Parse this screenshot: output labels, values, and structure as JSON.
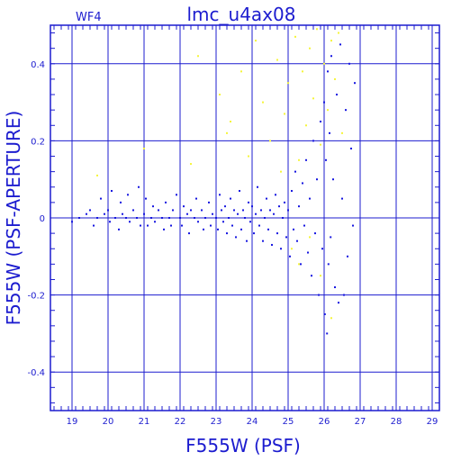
{
  "chart_data": {
    "type": "scatter",
    "title": "lmc_u4ax08",
    "corner_label": "WF4",
    "xlabel": "F555W (PSF)",
    "ylabel": "F555W (PSF-APERTURE)",
    "xlim": [
      18.4,
      29.2
    ],
    "ylim": [
      -0.5,
      0.5
    ],
    "xticks": [
      19,
      20,
      21,
      22,
      23,
      24,
      25,
      26,
      27,
      28,
      29
    ],
    "yticks": [
      -0.4,
      -0.2,
      0,
      0.2,
      0.4
    ],
    "ytick_labels": [
      "-0.4",
      "-0.2",
      "0",
      "0.2",
      "0.4"
    ],
    "grid": true,
    "colors": {
      "frame": "#1c1ccf",
      "grid": "#1c1ccf",
      "primary": "#1616e0",
      "secondary": "#f5f53a"
    },
    "series": [
      {
        "color": "#1616e0",
        "points": [
          [
            19.0,
            -0.01
          ],
          [
            19.2,
            0.0
          ],
          [
            19.4,
            0.01
          ],
          [
            19.5,
            0.02
          ],
          [
            19.6,
            -0.02
          ],
          [
            19.7,
            0.0
          ],
          [
            19.8,
            0.05
          ],
          [
            19.9,
            0.01
          ],
          [
            20.0,
            0.02
          ],
          [
            20.05,
            -0.01
          ],
          [
            20.1,
            0.07
          ],
          [
            20.2,
            0.0
          ],
          [
            20.3,
            -0.03
          ],
          [
            20.35,
            0.04
          ],
          [
            20.4,
            0.01
          ],
          [
            20.5,
            0.0
          ],
          [
            20.55,
            0.06
          ],
          [
            20.6,
            -0.01
          ],
          [
            20.7,
            0.02
          ],
          [
            20.8,
            0.0
          ],
          [
            20.85,
            0.08
          ],
          [
            20.9,
            -0.02
          ],
          [
            21.0,
            0.01
          ],
          [
            21.05,
            0.05
          ],
          [
            21.1,
            -0.02
          ],
          [
            21.2,
            0.0
          ],
          [
            21.25,
            0.03
          ],
          [
            21.3,
            -0.01
          ],
          [
            21.4,
            0.02
          ],
          [
            21.5,
            0.0
          ],
          [
            21.55,
            -0.03
          ],
          [
            21.6,
            0.04
          ],
          [
            21.7,
            0.0
          ],
          [
            21.75,
            -0.02
          ],
          [
            21.8,
            0.02
          ],
          [
            21.9,
            0.06
          ],
          [
            22.0,
            0.0
          ],
          [
            22.05,
            -0.02
          ],
          [
            22.1,
            0.03
          ],
          [
            22.2,
            0.01
          ],
          [
            22.25,
            -0.04
          ],
          [
            22.3,
            0.02
          ],
          [
            22.4,
            0.0
          ],
          [
            22.45,
            0.05
          ],
          [
            22.5,
            -0.01
          ],
          [
            22.6,
            0.02
          ],
          [
            22.65,
            -0.03
          ],
          [
            22.7,
            0.0
          ],
          [
            22.8,
            0.04
          ],
          [
            22.85,
            -0.02
          ],
          [
            22.9,
            0.01
          ],
          [
            23.0,
            0.0
          ],
          [
            23.05,
            -0.03
          ],
          [
            23.1,
            0.06
          ],
          [
            23.15,
            0.02
          ],
          [
            23.2,
            -0.01
          ],
          [
            23.25,
            0.03
          ],
          [
            23.3,
            -0.04
          ],
          [
            23.35,
            0.0
          ],
          [
            23.4,
            0.05
          ],
          [
            23.45,
            -0.02
          ],
          [
            23.5,
            0.02
          ],
          [
            23.55,
            -0.05
          ],
          [
            23.6,
            0.01
          ],
          [
            23.65,
            0.07
          ],
          [
            23.7,
            -0.03
          ],
          [
            23.75,
            0.02
          ],
          [
            23.8,
            0.0
          ],
          [
            23.85,
            -0.06
          ],
          [
            23.9,
            0.04
          ],
          [
            23.95,
            -0.01
          ],
          [
            24.0,
            0.03
          ],
          [
            24.05,
            -0.04
          ],
          [
            24.1,
            0.01
          ],
          [
            24.15,
            0.08
          ],
          [
            24.2,
            -0.02
          ],
          [
            24.25,
            0.02
          ],
          [
            24.3,
            -0.06
          ],
          [
            24.35,
            0.0
          ],
          [
            24.4,
            0.05
          ],
          [
            24.45,
            -0.03
          ],
          [
            24.5,
            0.02
          ],
          [
            24.55,
            -0.07
          ],
          [
            24.6,
            0.01
          ],
          [
            24.65,
            0.06
          ],
          [
            24.7,
            -0.04
          ],
          [
            24.75,
            0.03
          ],
          [
            24.8,
            -0.08
          ],
          [
            24.85,
            0.0
          ],
          [
            24.9,
            0.04
          ],
          [
            24.95,
            -0.05
          ],
          [
            25.0,
            0.02
          ],
          [
            25.05,
            -0.1
          ],
          [
            25.1,
            0.07
          ],
          [
            25.15,
            -0.03
          ],
          [
            25.2,
            0.12
          ],
          [
            25.25,
            -0.06
          ],
          [
            25.3,
            0.03
          ],
          [
            25.35,
            -0.12
          ],
          [
            25.4,
            0.09
          ],
          [
            25.45,
            -0.02
          ],
          [
            25.5,
            0.15
          ],
          [
            25.55,
            -0.09
          ],
          [
            25.6,
            0.05
          ],
          [
            25.65,
            -0.15
          ],
          [
            25.7,
            0.2
          ],
          [
            25.75,
            -0.04
          ],
          [
            25.8,
            0.1
          ],
          [
            25.85,
            -0.2
          ],
          [
            25.9,
            0.25
          ],
          [
            25.95,
            -0.08
          ],
          [
            26.0,
            0.3
          ],
          [
            26.02,
            -0.25
          ],
          [
            26.05,
            0.15
          ],
          [
            26.08,
            -0.3
          ],
          [
            26.1,
            0.38
          ],
          [
            26.12,
            -0.12
          ],
          [
            26.15,
            0.22
          ],
          [
            26.18,
            -0.05
          ],
          [
            26.2,
            0.42
          ],
          [
            26.25,
            0.1
          ],
          [
            26.3,
            -0.18
          ],
          [
            26.35,
            0.32
          ],
          [
            26.4,
            -0.22
          ],
          [
            26.45,
            0.45
          ],
          [
            26.5,
            0.05
          ],
          [
            26.55,
            -0.2
          ],
          [
            26.6,
            0.28
          ],
          [
            26.65,
            -0.1
          ],
          [
            26.7,
            0.4
          ],
          [
            26.75,
            0.18
          ],
          [
            26.8,
            -0.02
          ],
          [
            26.85,
            0.35
          ]
        ]
      },
      {
        "color": "#f5f53a",
        "points": [
          [
            19.7,
            0.11
          ],
          [
            21.0,
            0.18
          ],
          [
            22.3,
            0.14
          ],
          [
            22.5,
            0.42
          ],
          [
            23.1,
            0.32
          ],
          [
            23.4,
            0.25
          ],
          [
            23.7,
            0.38
          ],
          [
            23.9,
            0.16
          ],
          [
            24.1,
            0.46
          ],
          [
            24.3,
            0.3
          ],
          [
            24.5,
            0.2
          ],
          [
            24.7,
            0.41
          ],
          [
            24.9,
            0.27
          ],
          [
            25.0,
            0.35
          ],
          [
            25.2,
            0.47
          ],
          [
            25.3,
            0.15
          ],
          [
            25.4,
            0.38
          ],
          [
            25.5,
            0.24
          ],
          [
            25.6,
            0.44
          ],
          [
            25.7,
            0.31
          ],
          [
            25.8,
            0.49
          ],
          [
            25.9,
            0.19
          ],
          [
            26.0,
            0.4
          ],
          [
            26.1,
            0.28
          ],
          [
            26.2,
            0.46
          ],
          [
            26.3,
            0.36
          ],
          [
            26.4,
            0.48
          ],
          [
            26.5,
            0.22
          ],
          [
            25.3,
            -0.12
          ],
          [
            25.6,
            -0.05
          ],
          [
            25.9,
            -0.15
          ],
          [
            26.2,
            -0.26
          ],
          [
            25.1,
            -0.08
          ],
          [
            24.8,
            0.12
          ],
          [
            23.3,
            0.22
          ]
        ]
      }
    ]
  }
}
